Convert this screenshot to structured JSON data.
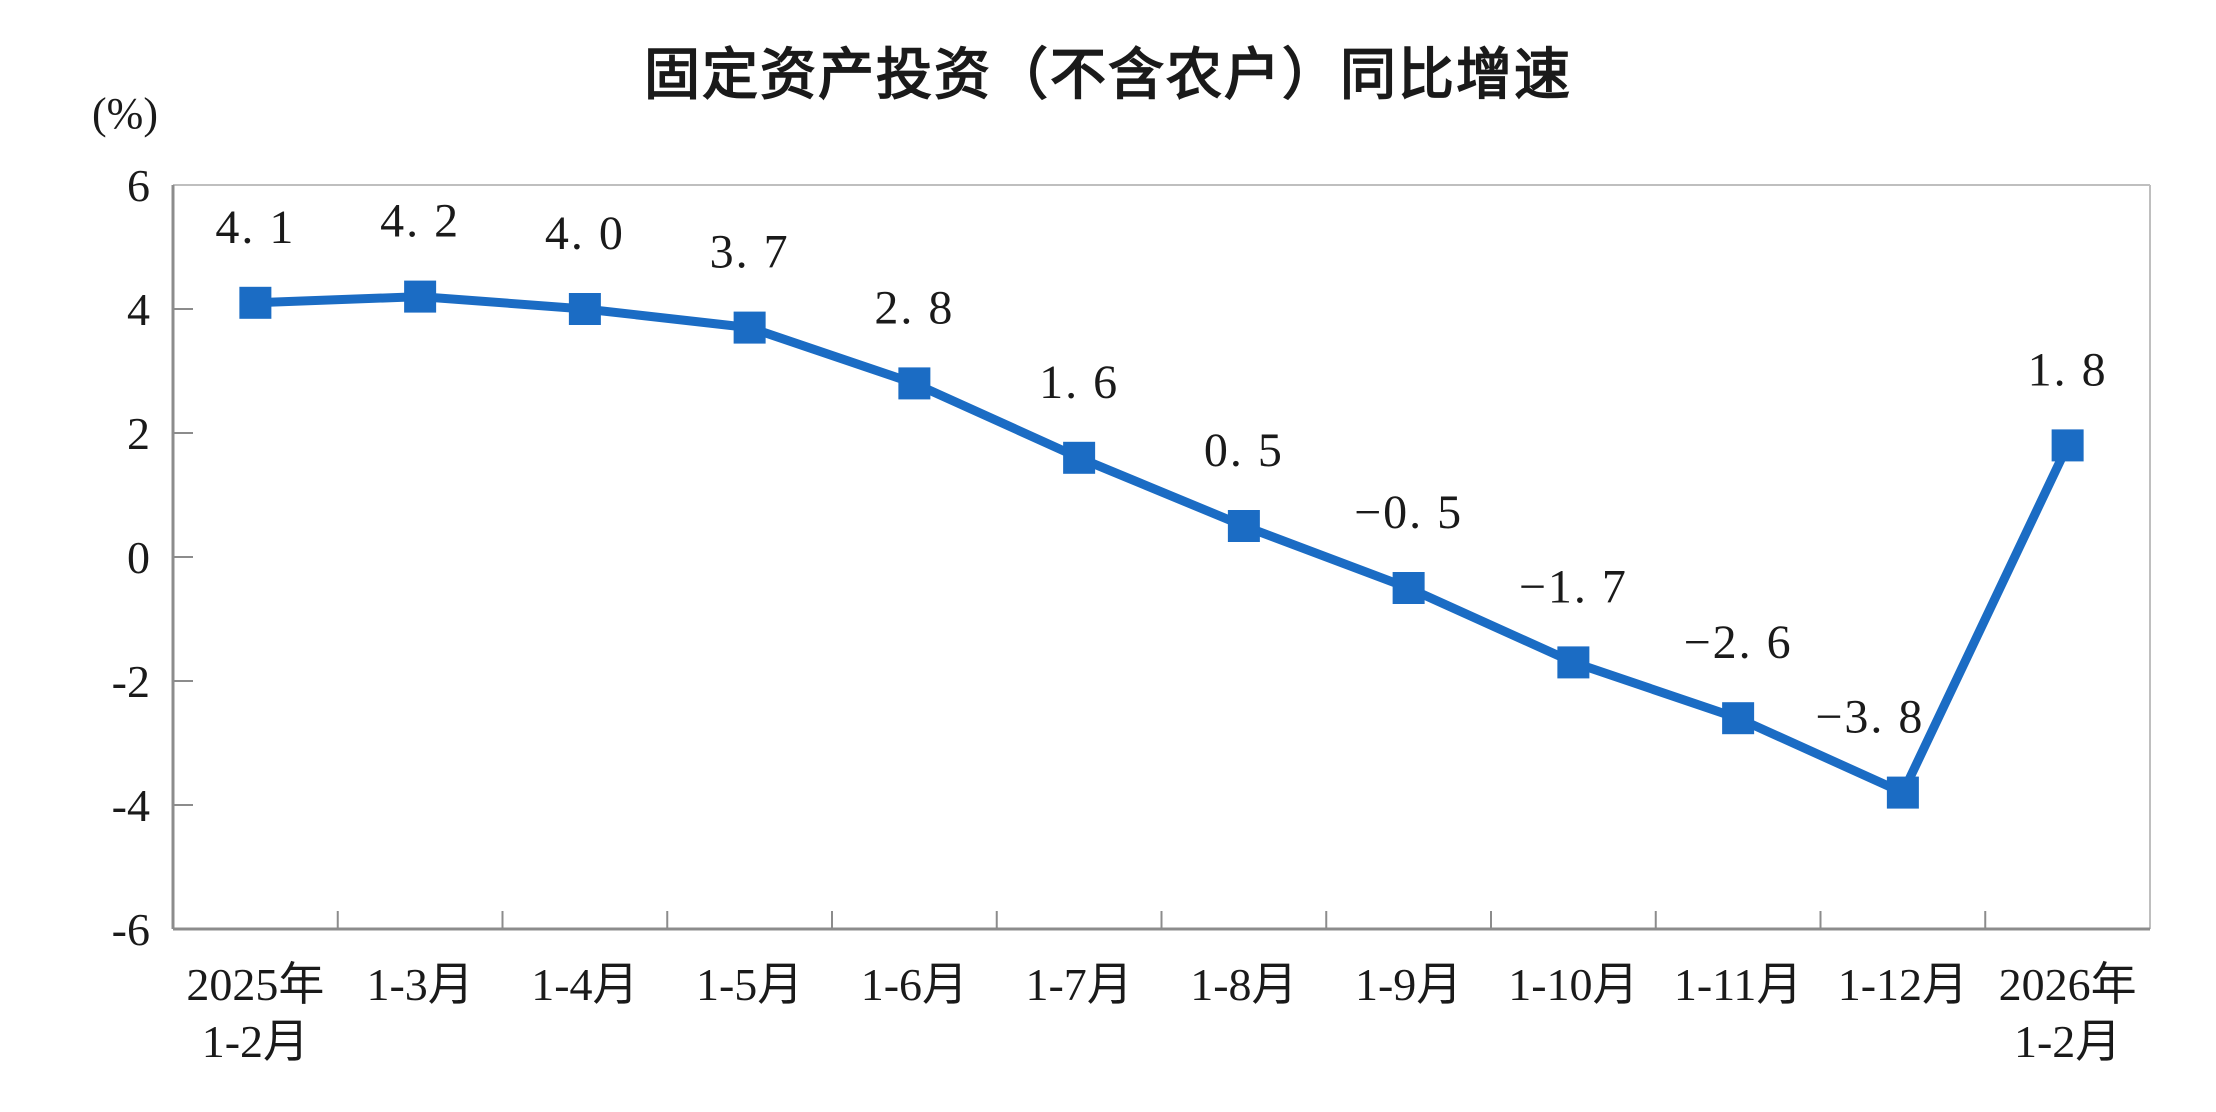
{
  "page": {
    "background": "#FFFFFF"
  },
  "colors": {
    "line": "#1B6CC4",
    "marker": "#1B6CC4",
    "axis": "#8C8C8C",
    "plot_border": "#BFBFBF",
    "text": "#1a1a1a"
  },
  "chart_data": {
    "type": "line",
    "title": "固定资产投资（不含农户）同比增速",
    "unit_label": "(%)",
    "xlabel": "",
    "ylabel": "(%)",
    "categories": [
      "2025年\n1-2月",
      "1-3月",
      "1-4月",
      "1-5月",
      "1-6月",
      "1-7月",
      "1-8月",
      "1-9月",
      "1-10月",
      "1-11月",
      "1-12月",
      "2026年\n1-2月"
    ],
    "values": [
      4.1,
      4.2,
      4.0,
      3.7,
      2.8,
      1.6,
      0.5,
      -0.5,
      -1.7,
      -2.6,
      -3.8,
      1.8
    ],
    "point_labels": [
      "4. 1",
      "4. 2",
      "4. 0",
      "3. 7",
      "2. 8",
      "1. 6",
      "0. 5",
      "−0. 5",
      "−1. 7",
      "−2. 6",
      "−3. 8",
      "1. 8"
    ],
    "ytick_labels": [
      "6",
      "4",
      "2",
      "0",
      "-2",
      "-4",
      "-6"
    ],
    "yticks": [
      6,
      4,
      2,
      0,
      -2,
      -4,
      -6
    ],
    "ylim": [
      -6,
      6
    ],
    "grid": false,
    "legend_position": "none",
    "marker": "square",
    "line_color": "#1B6CC4",
    "label_dx": [
      0,
      0,
      0,
      0,
      0,
      0,
      0,
      0,
      0,
      0,
      -33,
      0
    ]
  }
}
